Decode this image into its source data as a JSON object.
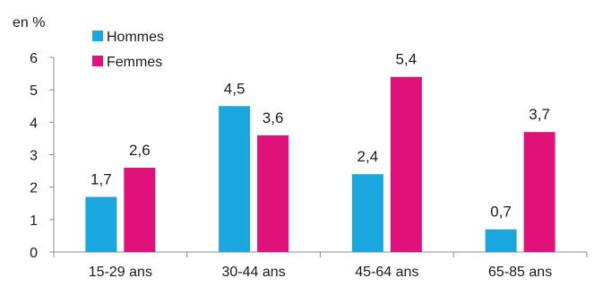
{
  "chart_data": {
    "type": "bar",
    "title": "",
    "ylabel": "en %",
    "xlabel": "",
    "categories": [
      "15-29 ans",
      "30-44 ans",
      "45-64 ans",
      "65-85 ans"
    ],
    "series": [
      {
        "name": "Hommes",
        "color": "#1aa7e0",
        "values": [
          1.7,
          4.5,
          2.4,
          0.7
        ],
        "labels": [
          "1,7",
          "4,5",
          "2,4",
          "0,7"
        ]
      },
      {
        "name": "Femmes",
        "color": "#e0127a",
        "values": [
          2.6,
          3.6,
          5.4,
          3.7
        ],
        "labels": [
          "2,6",
          "3,6",
          "5,4",
          "3,7"
        ]
      }
    ],
    "ylim": [
      0,
      6
    ],
    "yticks": [
      0,
      1,
      2,
      3,
      4,
      5,
      6
    ],
    "grid": false,
    "legend": "top-left"
  }
}
